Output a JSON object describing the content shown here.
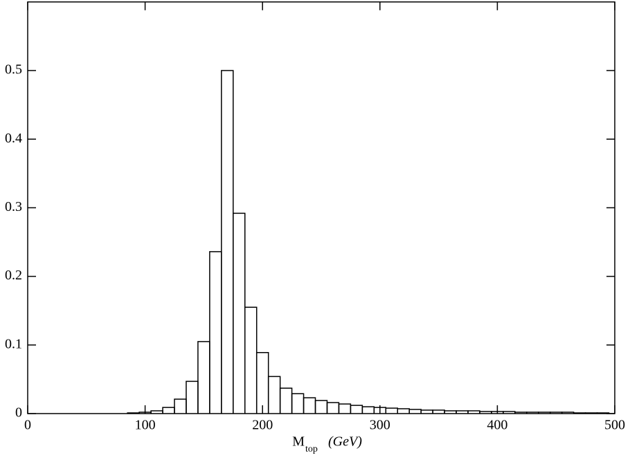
{
  "chart_data": {
    "type": "histogram",
    "xlabel": "M",
    "xlabel_sub": "top",
    "xlabel_unit": "(GeV)",
    "bins": [
      85,
      95,
      105,
      115,
      125,
      135,
      145,
      155,
      165,
      175,
      185,
      195,
      205,
      215,
      225,
      235,
      245,
      255,
      265,
      275,
      285,
      295,
      305,
      315,
      325,
      335,
      345,
      355,
      365,
      375,
      385,
      395,
      405,
      415,
      425,
      435,
      445,
      455,
      465,
      475,
      485,
      495
    ],
    "values": [
      0.001,
      0.002,
      0.004,
      0.009,
      0.021,
      0.047,
      0.105,
      0.236,
      0.5,
      0.292,
      0.155,
      0.089,
      0.054,
      0.037,
      0.029,
      0.023,
      0.019,
      0.016,
      0.014,
      0.012,
      0.01,
      0.009,
      0.008,
      0.007,
      0.006,
      0.005,
      0.005,
      0.004,
      0.004,
      0.004,
      0.003,
      0.003,
      0.003,
      0.002,
      0.002,
      0.002,
      0.002,
      0.002,
      0.001,
      0.001,
      0.001
    ],
    "color": "#000000",
    "xlim": [
      0,
      500
    ],
    "xticks": [
      0,
      100,
      200,
      300,
      400,
      500
    ],
    "ylim": [
      0,
      0.6
    ],
    "yticks": [
      0,
      0.1,
      0.2,
      0.3,
      0.4,
      0.5
    ]
  }
}
